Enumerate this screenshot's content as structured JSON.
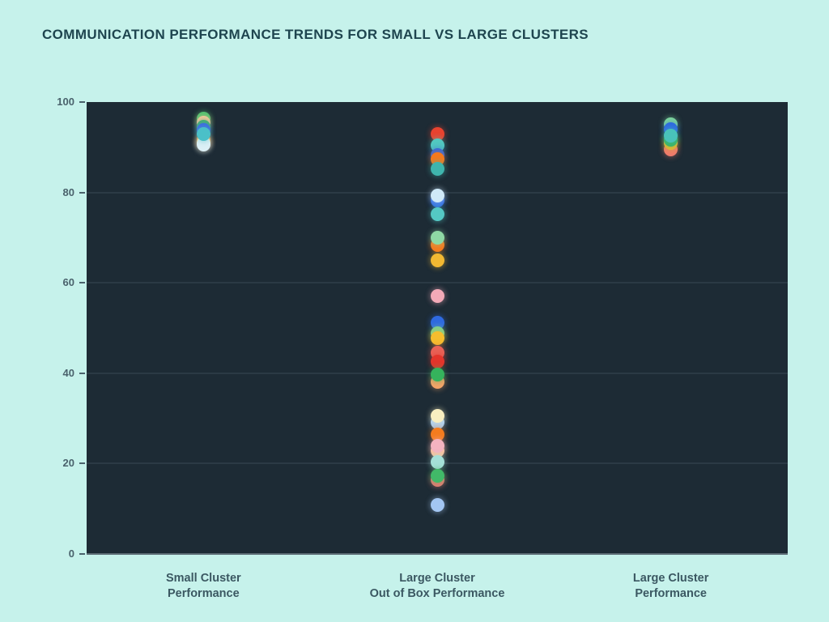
{
  "page": {
    "background": "#c6f2eb",
    "plot_background": "#1d2b35"
  },
  "header": {
    "title": "COMMUNICATION PERFORMANCE TRENDS FOR SMALL VS LARGE CLUSTERS",
    "color": "#1e454f"
  },
  "chart_data": {
    "type": "scatter",
    "title": "COMMUNICATION PERFORMANCE TRENDS FOR SMALL VS LARGE CLUSTERS",
    "xlabel": "",
    "ylabel": "",
    "ylim": [
      0,
      100
    ],
    "yticks": [
      0,
      20,
      40,
      60,
      80,
      100
    ],
    "gridlines": [
      20,
      40,
      60,
      80
    ],
    "grid": true,
    "legend": "none",
    "plot_bg": "#1d2b35",
    "grid_color": "#2a3944",
    "categories": [
      "Small Cluster Performance",
      "Large Cluster Out of Box Performance",
      "Large Cluster Performance"
    ],
    "series": [
      {
        "name": "Small Cluster Performance",
        "label_lines": [
          "Small Cluster",
          "Performance"
        ],
        "points": [
          {
            "value": 96.3,
            "color": "#4cc06d"
          },
          {
            "value": 95.4,
            "color": "#f8c99e"
          },
          {
            "value": 94.5,
            "color": "#49b86a"
          },
          {
            "value": 93.8,
            "color": "#3e6ae0"
          },
          {
            "value": 91.6,
            "color": "#f5831f"
          },
          {
            "value": 91.0,
            "color": "#f8eec0"
          },
          {
            "value": 90.6,
            "color": "#dceff5"
          },
          {
            "value": 93.0,
            "color": "#4bc0c8"
          }
        ]
      },
      {
        "name": "Large Cluster Out of Box Performance",
        "label_lines": [
          "Large Cluster",
          "Out of Box Performance"
        ],
        "points": [
          {
            "value": 93.0,
            "color": "#e8432f"
          },
          {
            "value": 90.4,
            "color": "#52c8c0"
          },
          {
            "value": 88.3,
            "color": "#2f6ae0"
          },
          {
            "value": 87.4,
            "color": "#f5791d"
          },
          {
            "value": 85.2,
            "color": "#3fb5ad"
          },
          {
            "value": 78.3,
            "color": "#2f6ae0"
          },
          {
            "value": 79.3,
            "color": "#cfe9f8"
          },
          {
            "value": 75.2,
            "color": "#54c8c4"
          },
          {
            "value": 68.4,
            "color": "#f5791d"
          },
          {
            "value": 69.9,
            "color": "#8ed9a4"
          },
          {
            "value": 65.0,
            "color": "#f2b832"
          },
          {
            "value": 57.0,
            "color": "#f3aab8"
          },
          {
            "value": 51.2,
            "color": "#2f6ae0"
          },
          {
            "value": 48.9,
            "color": "#7ccf8e"
          },
          {
            "value": 47.8,
            "color": "#f5bd2e"
          },
          {
            "value": 44.6,
            "color": "#e96257"
          },
          {
            "value": 42.6,
            "color": "#e3352b"
          },
          {
            "value": 38.0,
            "color": "#f5a468"
          },
          {
            "value": 39.7,
            "color": "#35b35c"
          },
          {
            "value": 29.2,
            "color": "#a9cdf2"
          },
          {
            "value": 30.6,
            "color": "#f8eec0"
          },
          {
            "value": 26.4,
            "color": "#f57c1e"
          },
          {
            "value": 22.9,
            "color": "#f8c39b"
          },
          {
            "value": 23.9,
            "color": "#f4b3c0"
          },
          {
            "value": 20.3,
            "color": "#a5e0d8"
          },
          {
            "value": 16.4,
            "color": "#e87b72"
          },
          {
            "value": 17.3,
            "color": "#41b968"
          },
          {
            "value": 10.8,
            "color": "#a3c6f2"
          }
        ]
      },
      {
        "name": "Large Cluster Performance",
        "label_lines": [
          "Large Cluster",
          "Performance"
        ],
        "points": [
          {
            "value": 89.5,
            "color": "#ef7a6d"
          },
          {
            "value": 91.0,
            "color": "#f2b832"
          },
          {
            "value": 91.6,
            "color": "#3bb364"
          },
          {
            "value": 95.1,
            "color": "#7fd79a"
          },
          {
            "value": 94.0,
            "color": "#2f6ae0"
          },
          {
            "value": 92.5,
            "color": "#49c2ba"
          }
        ]
      }
    ]
  }
}
